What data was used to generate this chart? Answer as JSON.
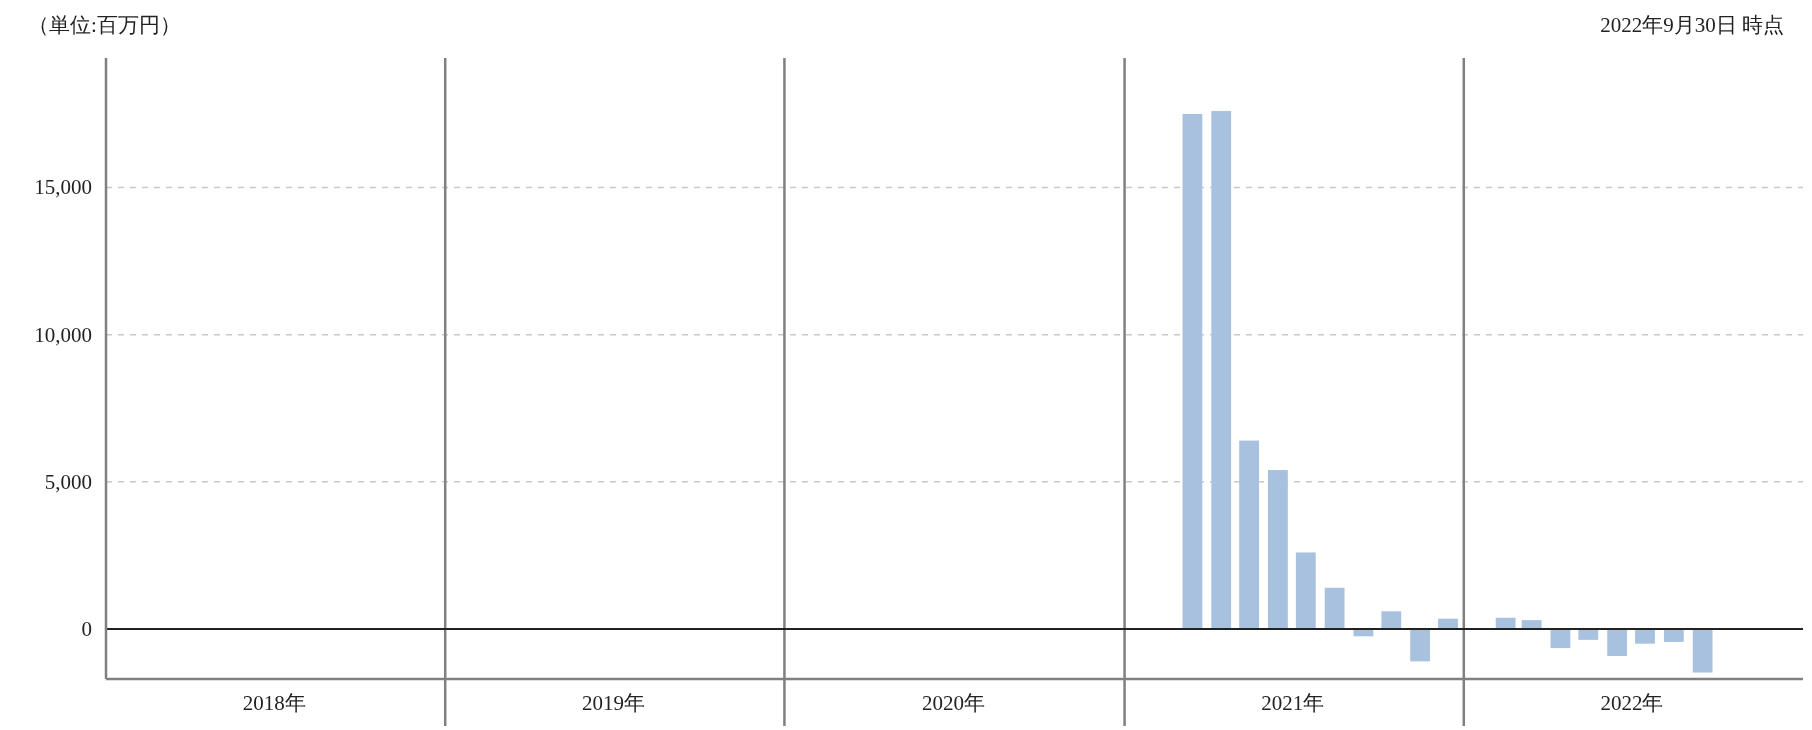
{
  "chart_data": {
    "type": "bar",
    "ylabel": "（単位:百万円）",
    "annotations": [
      "2022年9月30日 時点"
    ],
    "x": [
      "2021-03-15",
      "2021-04-15",
      "2021-05-15",
      "2021-06-15",
      "2021-07-15",
      "2021-08-15",
      "2021-09-15",
      "2021-10-15",
      "2021-11-15",
      "2021-12-15",
      "2022-02-15",
      "2022-03-15",
      "2022-04-15",
      "2022-05-15",
      "2022-06-15",
      "2022-07-15",
      "2022-08-15",
      "2022-09-15"
    ],
    "values": [
      17500,
      17600,
      6400,
      5400,
      2600,
      1400,
      -250,
      600,
      -1100,
      350,
      380,
      300,
      -650,
      -370,
      -920,
      -500,
      -440,
      -1480
    ],
    "color": "#a8c1de",
    "xlim": [
      "2018-01-01",
      "2023-01-01"
    ],
    "xticks": [
      {
        "value": "2018-07-01",
        "label": "2018年"
      },
      {
        "value": "2019-07-01",
        "label": "2019年"
      },
      {
        "value": "2020-07-01",
        "label": "2020年"
      },
      {
        "value": "2021-07-01",
        "label": "2021年"
      },
      {
        "value": "2022-07-01",
        "label": "2022年"
      }
    ],
    "ylim": [
      -1700,
      19400
    ],
    "yticks": [
      0,
      {
        "value": 5000,
        "label": "5,000"
      },
      {
        "value": 10000,
        "label": "10,000"
      },
      {
        "value": 15000,
        "label": "15,000"
      }
    ],
    "grid": "y",
    "ref_lines": [
      {
        "axis": "x",
        "value": "2019-01-01",
        "color": "#808080"
      },
      {
        "axis": "x",
        "value": "2020-01-01",
        "color": "#808080"
      },
      {
        "axis": "x",
        "value": "2021-01-01",
        "color": "#808080"
      },
      {
        "axis": "x",
        "value": "2022-01-01",
        "color": "#808080"
      },
      {
        "axis": "y",
        "value": 0,
        "color": "#222222"
      }
    ]
  }
}
